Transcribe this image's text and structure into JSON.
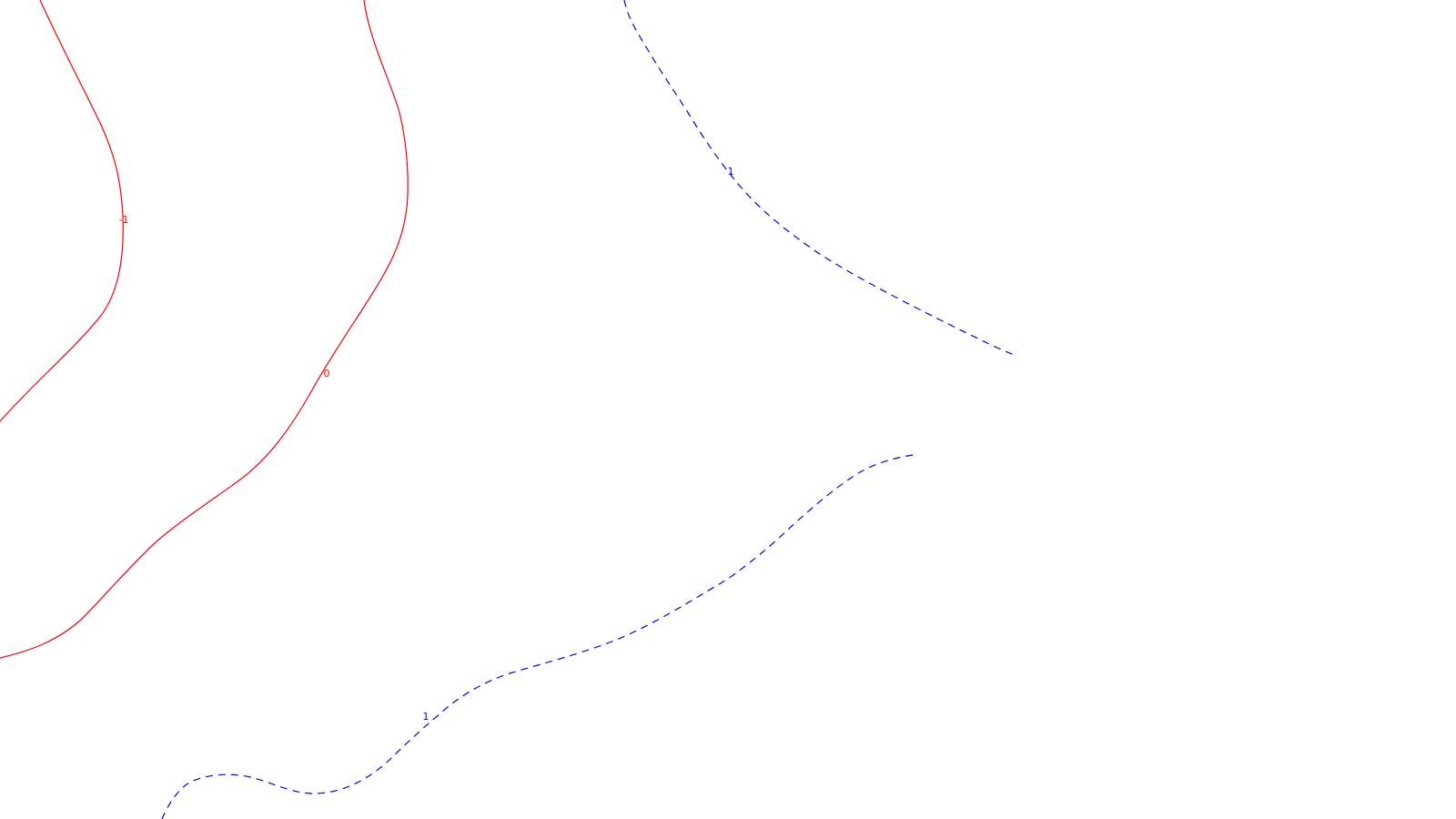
{
  "contours": [
    {
      "id": "contour-neg1",
      "level": "-1",
      "label": "-1",
      "color": "#ff0000",
      "style": "solid"
    },
    {
      "id": "contour-zero",
      "level": "0",
      "label": "0",
      "color": "#ff0000",
      "style": "solid"
    },
    {
      "id": "contour-pos1-upper",
      "level": "1",
      "label": "1",
      "color": "#0000ff",
      "style": "dashed"
    },
    {
      "id": "contour-pos1-lower",
      "level": "1",
      "label": "1",
      "color": "#0000ff",
      "style": "dashed"
    }
  ]
}
